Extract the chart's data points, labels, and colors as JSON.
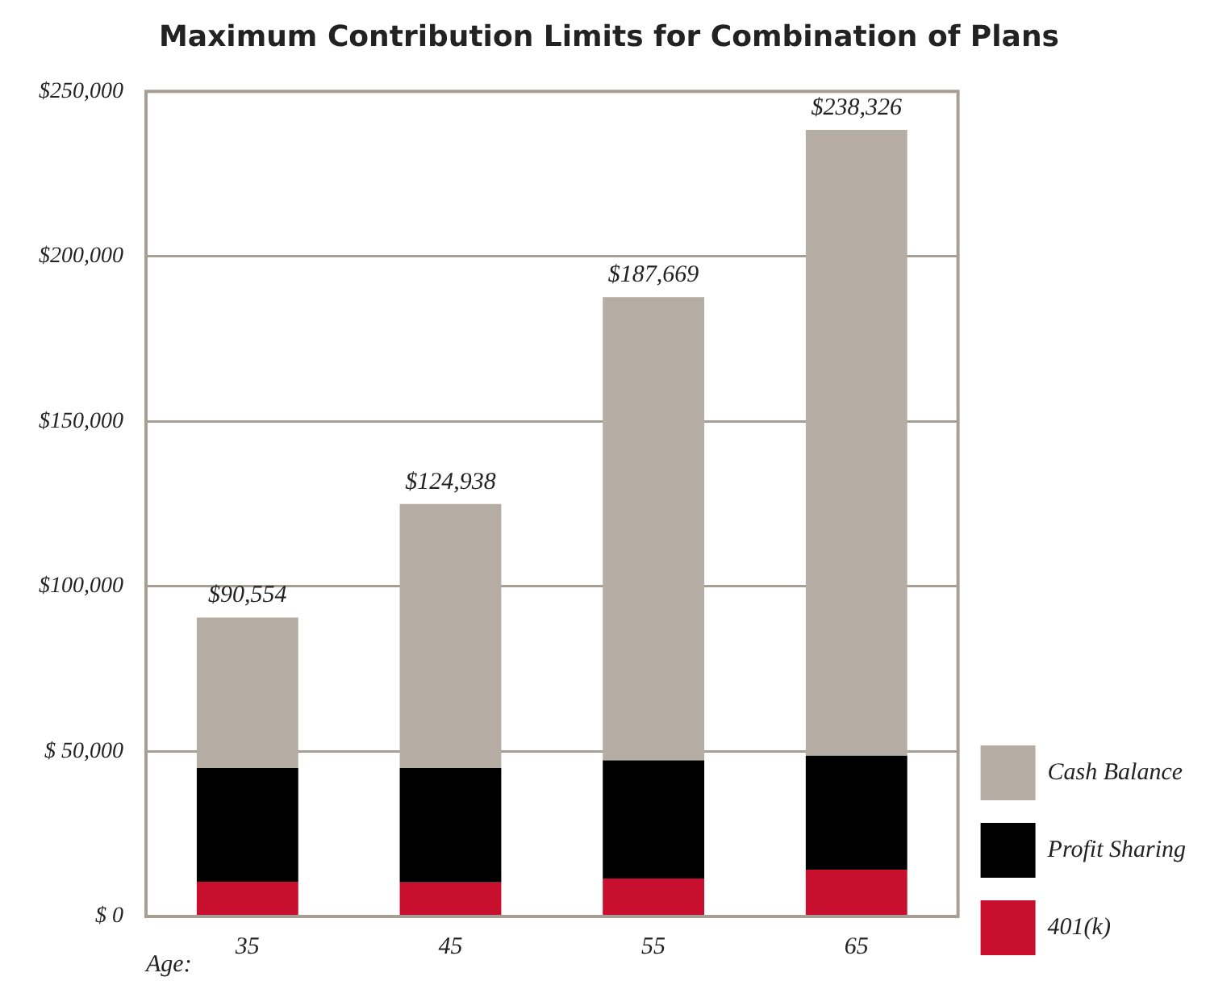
{
  "chart_data": {
    "type": "bar",
    "title": "Maximum Contribution Limits for Combination of Plans",
    "xlabel": "Age:",
    "categories": [
      "35",
      "45",
      "55",
      "65"
    ],
    "stacked": true,
    "series": [
      {
        "name": "401(k)",
        "color": "#c8102e",
        "values": [
          10500,
          10300,
          11500,
          14200
        ]
      },
      {
        "name": "Profit Sharing",
        "color": "#000000",
        "values": [
          34500,
          34700,
          35800,
          34500
        ]
      },
      {
        "name": "Cash Balance",
        "color": "#b5ada3",
        "values": [
          45554,
          79938,
          140369,
          189626
        ]
      }
    ],
    "totals": [
      "$90,554",
      "$124,938",
      "$187,669",
      "$238,326"
    ],
    "ylim": [
      0,
      250000
    ],
    "yticks": [
      {
        "value": 0,
        "label": "$ 0"
      },
      {
        "value": 50000,
        "label": "$ 50,000"
      },
      {
        "value": 100000,
        "label": "$100,000"
      },
      {
        "value": 150000,
        "label": "$150,000"
      },
      {
        "value": 200000,
        "label": "$200,000"
      },
      {
        "value": 250000,
        "label": "$250,000"
      }
    ],
    "grid": "y",
    "legend": "bottom right"
  }
}
